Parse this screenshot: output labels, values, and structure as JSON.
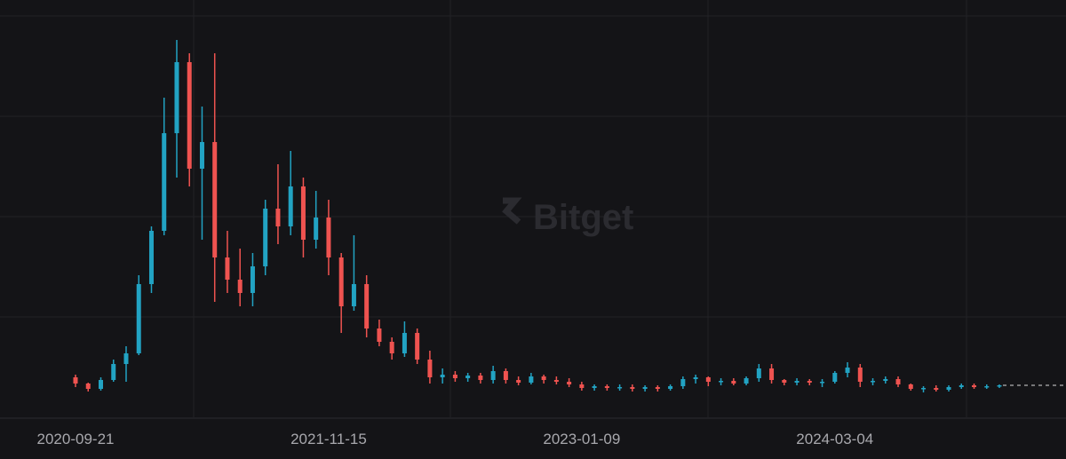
{
  "chart_data": {
    "type": "candlestick",
    "watermark": "Bitget",
    "up_color": "#22a3c3",
    "down_color": "#ef5350",
    "ylim": [
      0,
      470
    ],
    "categories": [
      "2020-09-21",
      null,
      null,
      null,
      null,
      null,
      null,
      null,
      null,
      null,
      null,
      null,
      null,
      null,
      null,
      null,
      null,
      null,
      null,
      null,
      "2021-11-15",
      null,
      null,
      null,
      null,
      null,
      null,
      null,
      null,
      null,
      null,
      null,
      null,
      null,
      null,
      null,
      null,
      null,
      null,
      null,
      "2023-01-09",
      null,
      null,
      null,
      null,
      null,
      null,
      null,
      null,
      null,
      null,
      null,
      null,
      null,
      null,
      null,
      null,
      null,
      null,
      null,
      "2024-03-04",
      null,
      null,
      null,
      null,
      null,
      null,
      null,
      null,
      null,
      null,
      null,
      null,
      null
    ],
    "open": [
      45,
      38,
      32,
      42,
      60,
      72,
      150,
      210,
      320,
      400,
      280,
      310,
      180,
      155,
      140,
      170,
      235,
      215,
      260,
      200,
      225,
      180,
      125,
      150,
      100,
      85,
      72,
      95,
      65,
      45,
      48,
      44,
      47,
      42,
      52,
      42,
      39,
      46,
      42,
      40,
      37,
      33,
      35,
      33,
      34,
      32,
      34,
      32,
      35,
      43,
      45,
      40,
      41,
      38,
      44,
      55,
      42,
      39,
      41,
      39,
      40,
      50,
      56,
      40,
      41,
      43,
      37,
      32,
      33,
      31,
      34,
      36,
      34,
      35
    ],
    "high": [
      48,
      39,
      45,
      65,
      80,
      160,
      215,
      360,
      425,
      410,
      350,
      410,
      210,
      190,
      185,
      245,
      285,
      300,
      270,
      255,
      245,
      185,
      205,
      160,
      110,
      90,
      108,
      100,
      75,
      55,
      52,
      50,
      50,
      58,
      55,
      46,
      50,
      48,
      46,
      44,
      40,
      37,
      37,
      37,
      37,
      36,
      36,
      37,
      46,
      48,
      46,
      44,
      44,
      46,
      60,
      60,
      43,
      44,
      43,
      43,
      52,
      62,
      60,
      44,
      46,
      46,
      38,
      35,
      36,
      36,
      38,
      38,
      37,
      37
    ],
    "low": [
      34,
      29,
      30,
      40,
      40,
      70,
      140,
      205,
      270,
      260,
      200,
      130,
      140,
      125,
      125,
      160,
      195,
      205,
      180,
      190,
      160,
      95,
      120,
      90,
      80,
      65,
      68,
      60,
      38,
      38,
      40,
      40,
      38,
      38,
      38,
      36,
      37,
      38,
      37,
      34,
      30,
      30,
      30,
      30,
      29,
      29,
      29,
      30,
      32,
      38,
      35,
      36,
      36,
      36,
      40,
      38,
      36,
      36,
      36,
      34,
      38,
      45,
      34,
      36,
      38,
      34,
      30,
      28,
      29,
      29,
      32,
      32,
      32,
      33
    ],
    "close": [
      38,
      32,
      42,
      60,
      72,
      150,
      210,
      320,
      400,
      280,
      310,
      180,
      155,
      140,
      170,
      235,
      215,
      260,
      200,
      225,
      180,
      125,
      150,
      100,
      85,
      72,
      95,
      65,
      45,
      48,
      44,
      47,
      42,
      52,
      42,
      39,
      46,
      42,
      40,
      37,
      33,
      35,
      33,
      34,
      32,
      34,
      32,
      35,
      43,
      45,
      40,
      41,
      38,
      44,
      55,
      42,
      39,
      41,
      39,
      40,
      50,
      56,
      40,
      41,
      43,
      37,
      32,
      33,
      31,
      34,
      36,
      34,
      35,
      36
    ]
  }
}
